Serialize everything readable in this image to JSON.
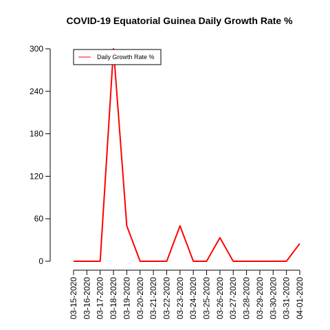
{
  "chart_data": {
    "type": "line",
    "title": "COVID-19 Equatorial Guinea Daily Growth Rate %",
    "xlabel": "",
    "ylabel": "",
    "categories": [
      "03-15-2020",
      "03-16-2020",
      "03-17-2020",
      "03-18-2020",
      "03-19-2020",
      "03-20-2020",
      "03-21-2020",
      "03-22-2020",
      "03-23-2020",
      "03-24-2020",
      "03-25-2020",
      "03-26-2020",
      "03-27-2020",
      "03-28-2020",
      "03-29-2020",
      "03-30-2020",
      "03-31-2020",
      "04-01-2020"
    ],
    "yticks": [
      "0",
      "60",
      "120",
      "180",
      "240",
      "300"
    ],
    "ylim": [
      0,
      300
    ],
    "grid": false,
    "legend_position": "top-left",
    "series": [
      {
        "name": "Daily Growth Rate %",
        "color": "#ff0000",
        "values": [
          0,
          0,
          0,
          300,
          50,
          0,
          0,
          0,
          50,
          0,
          0,
          33.3,
          0,
          0,
          0,
          0,
          0,
          25
        ]
      }
    ]
  }
}
